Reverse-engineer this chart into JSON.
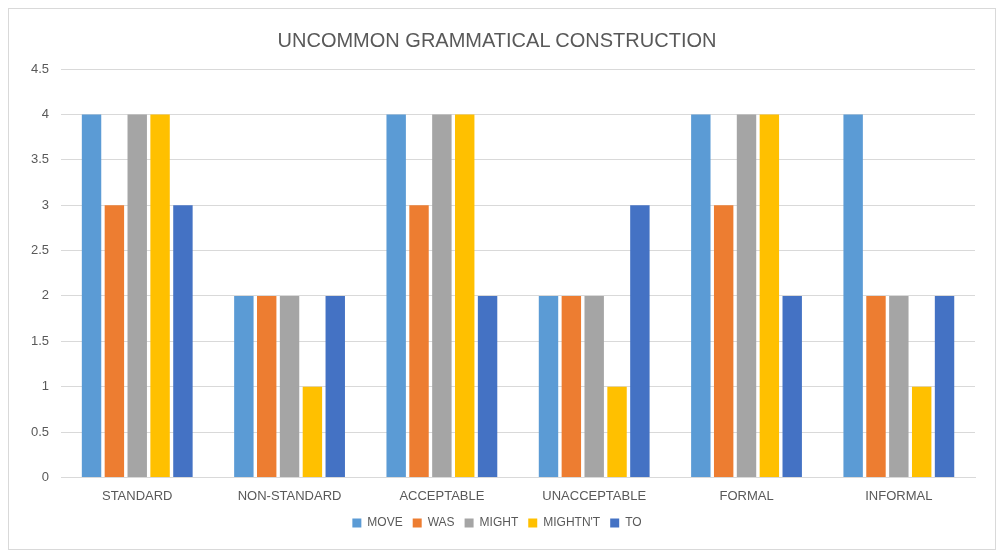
{
  "chart_data": {
    "type": "bar",
    "title": "UNCOMMON GRAMMATICAL CONSTRUCTION",
    "categories": [
      "STANDARD",
      "NON-STANDARD",
      "ACCEPTABLE",
      "UNACCEPTABLE",
      "FORMAL",
      "INFORMAL"
    ],
    "series": [
      {
        "name": "MOVE",
        "color": "#5b9bd5",
        "values": [
          4,
          2,
          4,
          2,
          4,
          4
        ]
      },
      {
        "name": "WAS",
        "color": "#ed7d31",
        "values": [
          3,
          2,
          3,
          2,
          3,
          2
        ]
      },
      {
        "name": "MIGHT",
        "color": "#a5a5a5",
        "values": [
          4,
          2,
          4,
          2,
          4,
          2
        ]
      },
      {
        "name": "MIGHTN'T",
        "color": "#ffc000",
        "values": [
          4,
          1,
          4,
          1,
          4,
          1
        ]
      },
      {
        "name": "TO",
        "color": "#4472c4",
        "values": [
          3,
          2,
          2,
          3,
          2,
          2
        ]
      }
    ],
    "ylim": [
      0,
      4.5
    ],
    "yticks": [
      0,
      0.5,
      1,
      1.5,
      2,
      2.5,
      3,
      3.5,
      4,
      4.5
    ],
    "grid": "y",
    "legend": "bottom"
  }
}
